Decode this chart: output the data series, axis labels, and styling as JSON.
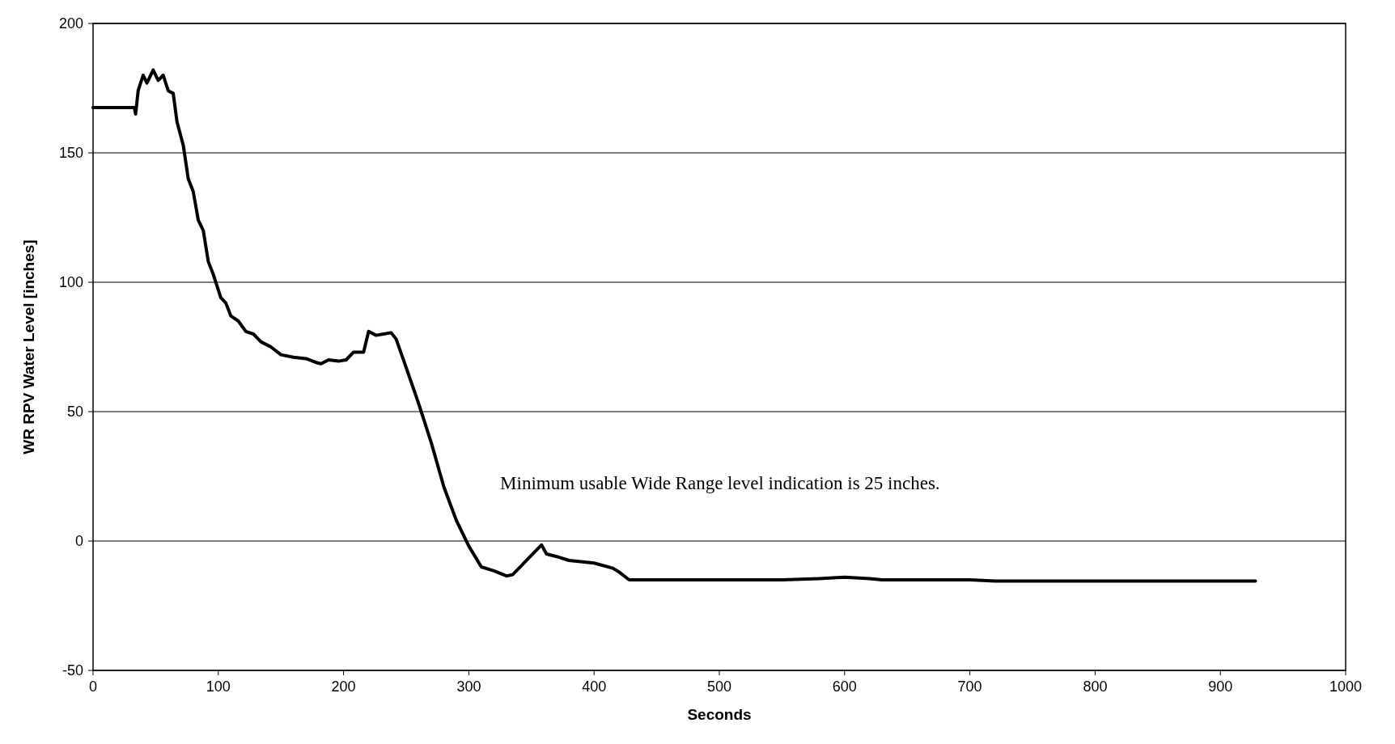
{
  "chart_data": {
    "type": "line",
    "xlabel": "Seconds",
    "ylabel": "WR RPV Water Level [inches]",
    "xlim": [
      0,
      1000
    ],
    "xticks": [
      0,
      100,
      200,
      300,
      400,
      500,
      600,
      700,
      800,
      900,
      1000
    ],
    "ylim": [
      -50,
      200
    ],
    "yticks": [
      -50,
      0,
      50,
      100,
      150,
      200
    ],
    "grid": "y",
    "marker": "none",
    "line_style": "solid",
    "annotations": [
      "Minimum usable Wide Range level indication is 25 inches."
    ],
    "series": [
      {
        "color": "#000000",
        "x": [
          0,
          33,
          34,
          36,
          40,
          43,
          48,
          52,
          56,
          60,
          64,
          67,
          72,
          76,
          80,
          84,
          88,
          92,
          96,
          102,
          106,
          110,
          116,
          122,
          128,
          134,
          142,
          150,
          160,
          170,
          178,
          182,
          188,
          196,
          202,
          208,
          216,
          220,
          226,
          232,
          238,
          242,
          250,
          260,
          270,
          280,
          290,
          300,
          310,
          320,
          330,
          335,
          345,
          355,
          358,
          362,
          370,
          380,
          400,
          415,
          420,
          428,
          500,
          550,
          580,
          600,
          620,
          630,
          700,
          720,
          800,
          900,
          928
        ],
        "values": [
          167.5,
          167.5,
          165,
          174,
          180,
          177,
          182,
          178,
          180,
          174,
          173,
          162,
          153,
          140,
          135,
          124,
          120,
          108,
          103,
          94,
          92,
          87,
          85,
          81,
          80,
          77,
          75,
          72,
          71,
          70.5,
          69,
          68.5,
          70,
          69.5,
          70,
          73,
          73,
          81,
          79.5,
          80,
          80.5,
          78,
          67,
          53,
          38,
          21,
          8,
          -2,
          -10,
          -11.5,
          -13.5,
          -13,
          -8,
          -3,
          -1.5,
          -5,
          -6,
          -7.5,
          -8.5,
          -10.5,
          -12,
          -15,
          -15,
          -15,
          -14.5,
          -14,
          -14.5,
          -15,
          -15,
          -15.5,
          -15.5,
          -15.5,
          -15.5
        ]
      }
    ]
  }
}
